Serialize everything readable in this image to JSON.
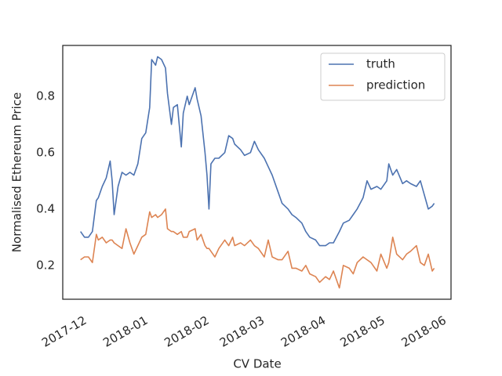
{
  "chart_data": {
    "type": "line",
    "xlabel": "CV Date",
    "ylabel": "Normalised Ethereum Price",
    "x": [
      -1,
      1,
      3,
      5,
      7,
      8,
      10,
      12,
      14,
      15,
      16,
      18,
      20,
      22,
      24,
      26,
      28,
      30,
      32,
      34,
      35,
      37,
      38,
      40,
      42,
      43,
      45,
      46,
      48,
      50,
      51,
      53,
      54,
      57,
      58,
      60,
      62,
      63,
      64,
      65,
      67,
      69,
      72,
      74,
      76,
      77,
      80,
      82,
      85,
      87,
      89,
      92,
      94,
      96,
      99,
      101,
      104,
      106,
      108,
      111,
      113,
      115,
      118,
      120,
      123,
      125,
      127,
      130,
      132,
      135,
      137,
      139,
      142,
      144,
      146,
      149,
      151,
      154,
      155,
      157,
      159,
      162,
      164,
      166,
      169,
      171,
      173,
      175,
      177,
      178
    ],
    "series": [
      {
        "name": "truth",
        "color": "#4c72b0",
        "values": [
          0.32,
          0.3,
          0.3,
          0.32,
          0.43,
          0.44,
          0.48,
          0.51,
          0.57,
          0.5,
          0.38,
          0.48,
          0.53,
          0.52,
          0.53,
          0.52,
          0.56,
          0.65,
          0.67,
          0.76,
          0.93,
          0.91,
          0.94,
          0.93,
          0.9,
          0.81,
          0.7,
          0.76,
          0.77,
          0.62,
          0.74,
          0.8,
          0.77,
          0.83,
          0.79,
          0.73,
          0.6,
          0.52,
          0.4,
          0.56,
          0.58,
          0.58,
          0.6,
          0.66,
          0.65,
          0.63,
          0.61,
          0.59,
          0.6,
          0.64,
          0.61,
          0.58,
          0.55,
          0.52,
          0.46,
          0.42,
          0.4,
          0.38,
          0.37,
          0.35,
          0.32,
          0.3,
          0.29,
          0.27,
          0.27,
          0.28,
          0.28,
          0.32,
          0.35,
          0.36,
          0.38,
          0.4,
          0.44,
          0.5,
          0.47,
          0.48,
          0.47,
          0.5,
          0.56,
          0.52,
          0.54,
          0.49,
          0.5,
          0.49,
          0.48,
          0.5,
          0.45,
          0.4,
          0.41,
          0.42
        ]
      },
      {
        "name": "prediction",
        "color": "#dd8452",
        "values": [
          0.22,
          0.23,
          0.23,
          0.21,
          0.31,
          0.29,
          0.3,
          0.28,
          0.29,
          0.29,
          0.28,
          0.27,
          0.26,
          0.33,
          0.28,
          0.24,
          0.27,
          0.3,
          0.31,
          0.39,
          0.37,
          0.38,
          0.37,
          0.38,
          0.4,
          0.33,
          0.32,
          0.32,
          0.31,
          0.32,
          0.3,
          0.3,
          0.32,
          0.33,
          0.29,
          0.31,
          0.27,
          0.26,
          0.26,
          0.25,
          0.23,
          0.26,
          0.29,
          0.27,
          0.3,
          0.27,
          0.28,
          0.27,
          0.29,
          0.27,
          0.26,
          0.23,
          0.29,
          0.23,
          0.22,
          0.22,
          0.25,
          0.19,
          0.19,
          0.18,
          0.2,
          0.17,
          0.16,
          0.14,
          0.16,
          0.15,
          0.18,
          0.12,
          0.2,
          0.19,
          0.17,
          0.21,
          0.23,
          0.22,
          0.21,
          0.18,
          0.24,
          0.19,
          0.21,
          0.3,
          0.24,
          0.22,
          0.24,
          0.25,
          0.27,
          0.21,
          0.2,
          0.24,
          0.18,
          0.19
        ]
      }
    ],
    "xlim": [
      -10,
      186.5
    ],
    "xticks": [
      {
        "value": 0,
        "label": "2017-12"
      },
      {
        "value": 31,
        "label": "2018-01"
      },
      {
        "value": 62,
        "label": "2018-02"
      },
      {
        "value": 90,
        "label": "2018-03"
      },
      {
        "value": 121,
        "label": "2018-04"
      },
      {
        "value": 151,
        "label": "2018-05"
      },
      {
        "value": 182,
        "label": "2018-06"
      }
    ],
    "ylim": [
      0.08,
      0.98
    ],
    "yticks": [
      0.2,
      0.4,
      0.6,
      0.8
    ],
    "grid": false,
    "legend": "upper right"
  }
}
